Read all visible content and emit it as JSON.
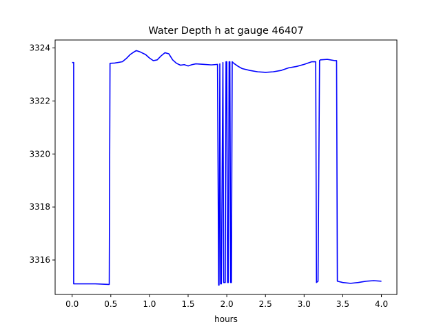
{
  "chart_data": {
    "type": "line",
    "title": "Water Depth h at gauge 46407",
    "xlabel": "hours",
    "ylabel": "",
    "xlim": [
      -0.22,
      4.2
    ],
    "ylim": [
      3314.7,
      3324.3
    ],
    "grid": false,
    "x_ticks": [
      0.0,
      0.5,
      1.0,
      1.5,
      2.0,
      2.5,
      3.0,
      3.5,
      4.0
    ],
    "x_tick_labels": [
      "0.0",
      "0.5",
      "1.0",
      "1.5",
      "2.0",
      "2.5",
      "3.0",
      "3.5",
      "4.0"
    ],
    "y_ticks": [
      3316,
      3318,
      3320,
      3322,
      3324
    ],
    "y_tick_labels": [
      "3316",
      "3318",
      "3320",
      "3322",
      "3324"
    ],
    "series": [
      {
        "color": "#0000ff",
        "x": [
          0.0,
          0.02,
          0.02,
          0.1,
          0.3,
          0.47,
          0.48,
          0.49,
          0.55,
          0.65,
          0.7,
          0.75,
          0.8,
          0.83,
          0.88,
          0.95,
          1.0,
          1.05,
          1.1,
          1.15,
          1.2,
          1.25,
          1.3,
          1.35,
          1.4,
          1.45,
          1.5,
          1.55,
          1.6,
          1.7,
          1.8,
          1.88,
          1.895,
          1.9,
          1.91,
          1.92,
          1.93,
          1.95,
          1.96,
          1.98,
          1.99,
          2.0,
          2.01,
          2.02,
          2.03,
          2.04,
          2.05,
          2.06,
          2.07,
          2.08,
          2.1,
          2.15,
          2.2,
          2.3,
          2.4,
          2.5,
          2.6,
          2.7,
          2.8,
          2.9,
          3.0,
          3.1,
          3.15,
          3.16,
          3.18,
          3.2,
          3.21,
          3.3,
          3.4,
          3.42,
          3.43,
          3.5,
          3.6,
          3.7,
          3.8,
          3.9,
          4.0
        ],
        "y": [
          3323.45,
          3323.45,
          3315.1,
          3315.1,
          3315.1,
          3315.08,
          3315.08,
          3323.42,
          3323.43,
          3323.48,
          3323.6,
          3323.75,
          3323.85,
          3323.9,
          3323.85,
          3323.75,
          3323.62,
          3323.52,
          3323.55,
          3323.7,
          3323.82,
          3323.78,
          3323.55,
          3323.42,
          3323.35,
          3323.37,
          3323.32,
          3323.37,
          3323.4,
          3323.38,
          3323.36,
          3323.38,
          3315.05,
          3315.05,
          3323.4,
          3315.1,
          3315.1,
          3323.45,
          3315.15,
          3315.15,
          3323.48,
          3323.48,
          3315.15,
          3315.15,
          3323.48,
          3323.48,
          3315.15,
          3315.15,
          3323.48,
          3323.45,
          3323.4,
          3323.3,
          3323.22,
          3323.15,
          3323.1,
          3323.08,
          3323.1,
          3323.15,
          3323.25,
          3323.3,
          3323.38,
          3323.48,
          3323.48,
          3315.15,
          3315.2,
          3323.52,
          3323.55,
          3323.57,
          3323.52,
          3323.52,
          3315.2,
          3315.15,
          3315.12,
          3315.15,
          3315.2,
          3315.22,
          3315.2
        ]
      }
    ]
  }
}
